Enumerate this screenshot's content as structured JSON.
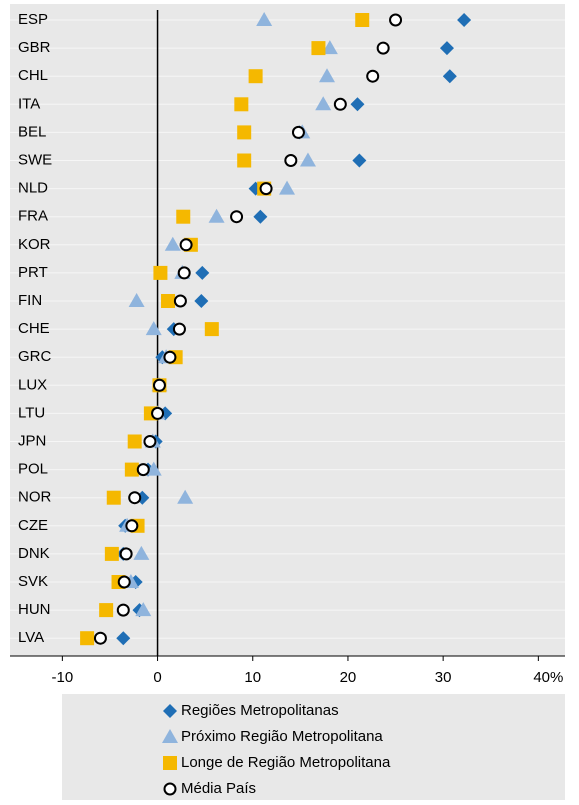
{
  "chart_data": {
    "type": "dot",
    "categories": [
      "ESP",
      "GBR",
      "CHL",
      "ITA",
      "BEL",
      "SWE",
      "NLD",
      "FRA",
      "KOR",
      "PRT",
      "FIN",
      "CHE",
      "GRC",
      "LUX",
      "LTU",
      "JPN",
      "POL",
      "NOR",
      "CZE",
      "DNK",
      "SVK",
      "HUN",
      "LVA"
    ],
    "series": [
      {
        "name": "Regiões Metropolitanas",
        "color": "#1f6eb5",
        "marker": "diamond",
        "values": [
          32.2,
          30.4,
          30.7,
          21,
          14.9,
          21.2,
          10.3,
          10.8,
          3.3,
          4.7,
          4.6,
          1.7,
          0.5,
          0.2,
          0.8,
          -0.2,
          -1,
          -1.6,
          -3.4,
          -3.6,
          -2.3,
          -1.9,
          -3.6
        ]
      },
      {
        "name": "Próximo Região Metropolitana",
        "color": "#8fb4dd",
        "marker": "triangle",
        "values": [
          11.2,
          18.1,
          17.8,
          17.4,
          15.2,
          15.8,
          13.6,
          6.2,
          1.6,
          2.6,
          -2.2,
          -0.4,
          0.9,
          0.2,
          0,
          -0.5,
          -0.4,
          2.9,
          -3.2,
          -1.7,
          -2.8,
          -1.5,
          null
        ]
      },
      {
        "name": "Longe de Região Metropolitana",
        "color": "#f5b800",
        "marker": "square",
        "values": [
          21.5,
          16.9,
          10.3,
          8.8,
          9.1,
          9.1,
          11.2,
          2.7,
          3.5,
          0.3,
          1.1,
          5.7,
          1.9,
          0.2,
          -0.7,
          -2.4,
          -2.7,
          -4.6,
          -2.1,
          -4.8,
          -4.1,
          -5.4,
          -7.4
        ]
      },
      {
        "name": "Média País",
        "color": "#ffffff",
        "marker": "circle",
        "values": [
          25,
          23.7,
          22.6,
          19.2,
          14.8,
          14,
          11.4,
          8.3,
          3,
          2.8,
          2.4,
          2.3,
          1.3,
          0.2,
          0,
          -0.8,
          -1.5,
          -2.4,
          -2.7,
          -3.3,
          -3.5,
          -3.6,
          -6
        ]
      }
    ],
    "xlim": [
      -15.5,
      42.8
    ],
    "xticks": [
      -10,
      0,
      10,
      20,
      30,
      {
        "value": 40,
        "label": "40%"
      }
    ]
  }
}
